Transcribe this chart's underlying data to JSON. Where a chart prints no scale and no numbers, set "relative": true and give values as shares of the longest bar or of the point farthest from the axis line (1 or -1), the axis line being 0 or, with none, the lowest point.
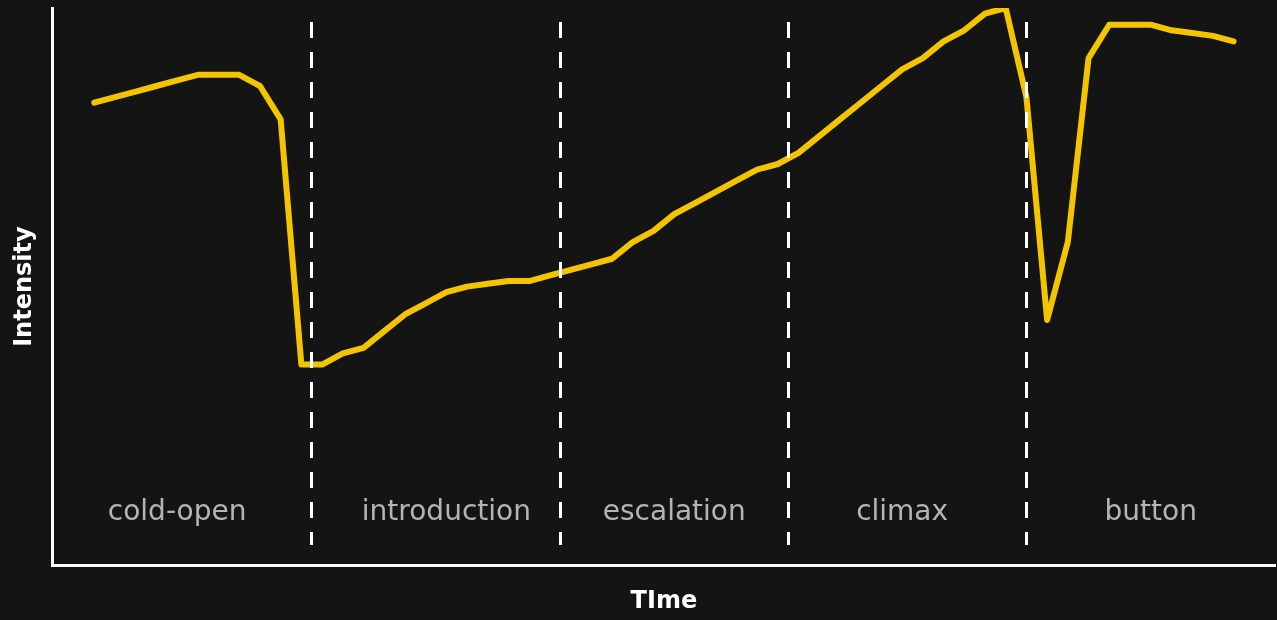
{
  "chart_data": {
    "type": "line",
    "relative": true,
    "xlabel": "TIme",
    "ylabel": "Intensity",
    "tick_labels": "x",
    "legend": false,
    "grid": false,
    "marker": "none",
    "line_style": "solid",
    "categories": [
      null,
      null,
      null,
      null,
      null,
      null,
      "cold-open",
      null,
      null,
      null,
      null,
      null,
      null,
      null,
      null,
      null,
      null,
      null,
      null,
      "introduction",
      null,
      null,
      null,
      null,
      null,
      null,
      null,
      null,
      null,
      null,
      "escalation",
      null,
      null,
      null,
      null,
      null,
      null,
      null,
      null,
      null,
      null,
      "climax",
      null,
      null,
      null,
      null,
      null,
      null,
      null,
      null,
      null,
      null,
      null,
      "button",
      null,
      null,
      null,
      null,
      null,
      null
    ],
    "series": [
      {
        "color": "#f5c400",
        "values": [
          null,
          null,
          0.83,
          0.84,
          0.85,
          0.86,
          0.87,
          0.88,
          0.88,
          0.88,
          0.86,
          0.8,
          0.36,
          0.36,
          0.38,
          0.39,
          0.42,
          0.45,
          0.47,
          0.49,
          0.5,
          0.505,
          0.51,
          0.51,
          0.52,
          0.53,
          0.54,
          0.55,
          0.58,
          0.6,
          0.63,
          0.65,
          0.67,
          0.69,
          0.71,
          0.72,
          0.74,
          0.77,
          0.8,
          0.83,
          0.86,
          0.89,
          0.91,
          0.94,
          0.96,
          0.99,
          1,
          0.84,
          0.44,
          0.58,
          0.91,
          0.97,
          0.97,
          0.97,
          0.96,
          0.955,
          0.95,
          0.94,
          null,
          null
        ]
      }
    ]
  }
}
